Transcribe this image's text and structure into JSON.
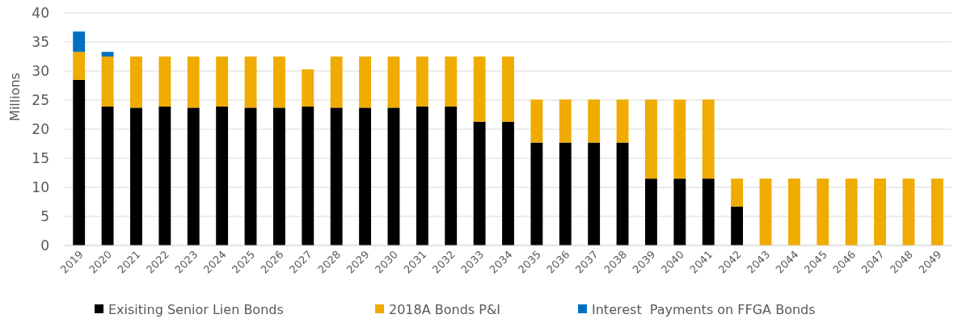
{
  "chart_data": {
    "type": "bar",
    "stacked": true,
    "ylabel": "Millions",
    "categories": [
      "2019",
      "2020",
      "2021",
      "2022",
      "2023",
      "2024",
      "2025",
      "2026",
      "2027",
      "2028",
      "2029",
      "2030",
      "2031",
      "2032",
      "2033",
      "2034",
      "2035",
      "2036",
      "2037",
      "2038",
      "2039",
      "2040",
      "2041",
      "2042",
      "2043",
      "2044",
      "2045",
      "2046",
      "2047",
      "2048",
      "2049"
    ],
    "series": [
      {
        "name": "Exisiting Senior Lien Bonds",
        "color": "#000000",
        "values": [
          28.5,
          23.9,
          23.7,
          23.9,
          23.7,
          23.9,
          23.7,
          23.7,
          23.9,
          23.7,
          23.7,
          23.7,
          23.9,
          23.9,
          21.3,
          21.3,
          17.7,
          17.7,
          17.7,
          17.7,
          11.5,
          11.5,
          11.5,
          6.7,
          0,
          0,
          0,
          0,
          0,
          0,
          0
        ]
      },
      {
        "name": "2018A Bonds P&I",
        "color": "#f0ab00",
        "values": [
          4.8,
          8.6,
          8.8,
          8.6,
          8.8,
          8.6,
          8.8,
          8.8,
          6.4,
          8.8,
          8.8,
          8.8,
          8.6,
          8.6,
          11.2,
          11.2,
          7.4,
          7.4,
          7.4,
          7.4,
          13.6,
          13.6,
          13.6,
          4.8,
          11.5,
          11.5,
          11.5,
          11.5,
          11.5,
          11.5,
          11.5
        ]
      },
      {
        "name": "Interest  Payments on FFGA Bonds",
        "color": "#0070c0",
        "values": [
          3.5,
          0.8,
          0,
          0,
          0,
          0,
          0,
          0,
          0,
          0,
          0,
          0,
          0,
          0,
          0,
          0,
          0,
          0,
          0,
          0,
          0,
          0,
          0,
          0,
          0,
          0,
          0,
          0,
          0,
          0,
          0
        ]
      }
    ],
    "ylim": [
      0,
      40
    ],
    "yticks": [
      0,
      5,
      10,
      15,
      20,
      25,
      30,
      35,
      40
    ],
    "grid": "y",
    "legend": "bottom"
  }
}
